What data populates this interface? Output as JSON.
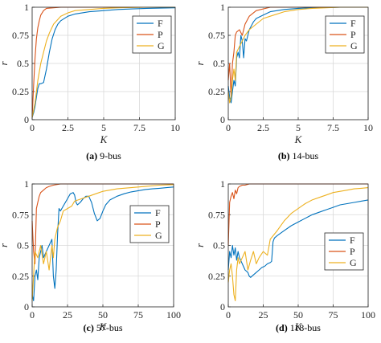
{
  "colors": {
    "F": "#0072bd",
    "P": "#d95319",
    "G": "#edb120",
    "axis": "#262626"
  },
  "chart_data": [
    {
      "type": "line",
      "caption": {
        "label": "(a)",
        "text": "9-bus"
      },
      "xlabel": "K",
      "ylabel": "r",
      "xlim": [
        0,
        10
      ],
      "ylim": [
        0,
        1
      ],
      "xticks": [
        "0",
        "2.5",
        "5",
        "7.5",
        "10"
      ],
      "yticks": [
        "0",
        "0.25",
        "0.5",
        "0.75",
        "1"
      ],
      "grid": true,
      "legend_position": "top-right",
      "series": [
        {
          "name": "F",
          "color": "#0072bd",
          "x": [
            0,
            0.1,
            0.2,
            0.3,
            0.4,
            0.5,
            0.6,
            0.8,
            1.0,
            1.2,
            1.4,
            1.6,
            1.8,
            2.0,
            2.5,
            3,
            4,
            5,
            6,
            7,
            8,
            10
          ],
          "y": [
            0.02,
            0.06,
            0.12,
            0.2,
            0.28,
            0.32,
            0.32,
            0.33,
            0.45,
            0.6,
            0.72,
            0.8,
            0.85,
            0.88,
            0.92,
            0.94,
            0.96,
            0.97,
            0.98,
            0.985,
            0.99,
            0.995
          ]
        },
        {
          "name": "P",
          "color": "#d95319",
          "x": [
            0,
            0.1,
            0.2,
            0.3,
            0.4,
            0.5,
            0.6,
            0.8,
            1.0,
            1.5,
            2,
            3,
            10
          ],
          "y": [
            0.02,
            0.3,
            0.55,
            0.72,
            0.82,
            0.88,
            0.93,
            0.97,
            0.99,
            0.995,
            1,
            1,
            1
          ]
        },
        {
          "name": "G",
          "color": "#edb120",
          "x": [
            0,
            0.2,
            0.4,
            0.6,
            0.8,
            1.0,
            1.2,
            1.5,
            2.0,
            2.5,
            3,
            4,
            5,
            6,
            8,
            10
          ],
          "y": [
            0.02,
            0.15,
            0.35,
            0.5,
            0.6,
            0.7,
            0.77,
            0.85,
            0.92,
            0.95,
            0.97,
            0.98,
            0.99,
            0.995,
            1,
            1
          ]
        }
      ]
    },
    {
      "type": "line",
      "caption": {
        "label": "(b)",
        "text": "14-bus"
      },
      "xlabel": "K",
      "ylabel": "r",
      "xlim": [
        0,
        10
      ],
      "ylim": [
        0,
        1
      ],
      "xticks": [
        "0",
        "2.5",
        "5",
        "7.5",
        "10"
      ],
      "yticks": [
        "0",
        "0.25",
        "0.5",
        "0.75",
        "1"
      ],
      "grid": true,
      "legend_position": "top-right",
      "series": [
        {
          "name": "F",
          "color": "#0072bd",
          "x": [
            0,
            0.1,
            0.2,
            0.3,
            0.4,
            0.5,
            0.6,
            0.7,
            0.8,
            0.9,
            1.0,
            1.1,
            1.2,
            1.3,
            1.5,
            1.8,
            2.0,
            2.5,
            3,
            4,
            5,
            6,
            8,
            10
          ],
          "y": [
            0.3,
            0.2,
            0.15,
            0.25,
            0.35,
            0.3,
            0.55,
            0.6,
            0.55,
            0.75,
            0.7,
            0.55,
            0.72,
            0.7,
            0.8,
            0.87,
            0.9,
            0.93,
            0.96,
            0.98,
            0.99,
            0.995,
            1,
            1
          ]
        },
        {
          "name": "P",
          "color": "#d95319",
          "x": [
            0,
            0.1,
            0.2,
            0.3,
            0.4,
            0.5,
            0.6,
            0.8,
            1.0,
            1.2,
            1.5,
            2,
            3,
            10
          ],
          "y": [
            0.35,
            0.5,
            0.2,
            0.5,
            0.6,
            0.75,
            0.78,
            0.8,
            0.75,
            0.85,
            0.92,
            0.97,
            1,
            1
          ]
        },
        {
          "name": "G",
          "color": "#edb120",
          "x": [
            0,
            0.1,
            0.2,
            0.3,
            0.4,
            0.5,
            0.6,
            0.8,
            1.0,
            1.2,
            1.5,
            2,
            2.5,
            3,
            4,
            5,
            6,
            8,
            10
          ],
          "y": [
            0.25,
            0.15,
            0.2,
            0.35,
            0.45,
            0.35,
            0.6,
            0.65,
            0.7,
            0.75,
            0.8,
            0.85,
            0.9,
            0.92,
            0.96,
            0.98,
            0.99,
            1,
            1
          ]
        }
      ]
    },
    {
      "type": "line",
      "caption": {
        "label": "(c)",
        "text": "57-bus"
      },
      "xlabel": "K",
      "ylabel": "r",
      "xlim": [
        0,
        100
      ],
      "ylim": [
        0,
        1
      ],
      "xticks": [
        "0",
        "25",
        "50",
        "75",
        "100"
      ],
      "yticks": [
        "0",
        "0.25",
        "0.5",
        "0.75",
        "1"
      ],
      "grid": true,
      "legend_position": "middle-right",
      "series": [
        {
          "name": "F",
          "color": "#0072bd",
          "x": [
            0,
            1,
            2,
            3,
            4,
            5,
            6,
            7,
            8,
            10,
            12,
            14,
            15,
            16,
            17,
            18,
            19,
            20,
            22,
            25,
            27,
            29,
            30,
            31,
            32,
            34,
            36,
            38,
            40,
            42,
            44,
            46,
            48,
            50,
            52,
            55,
            60,
            65,
            70,
            75,
            80,
            85,
            90,
            95,
            100
          ],
          "y": [
            0.1,
            0.05,
            0.25,
            0.3,
            0.22,
            0.4,
            0.45,
            0.5,
            0.4,
            0.45,
            0.5,
            0.55,
            0.25,
            0.15,
            0.3,
            0.6,
            0.8,
            0.78,
            0.82,
            0.88,
            0.92,
            0.93,
            0.91,
            0.85,
            0.83,
            0.85,
            0.88,
            0.9,
            0.9,
            0.85,
            0.76,
            0.7,
            0.72,
            0.78,
            0.83,
            0.87,
            0.9,
            0.92,
            0.935,
            0.945,
            0.955,
            0.96,
            0.965,
            0.97,
            0.975
          ]
        },
        {
          "name": "P",
          "color": "#d95319",
          "x": [
            0,
            1,
            2,
            3,
            4,
            5,
            6,
            8,
            10,
            12,
            15,
            20,
            30,
            100
          ],
          "y": [
            0.7,
            0.45,
            0.35,
            0.8,
            0.85,
            0.9,
            0.93,
            0.95,
            0.97,
            0.98,
            0.99,
            1,
            1,
            1
          ]
        },
        {
          "name": "G",
          "color": "#edb120",
          "x": [
            0,
            2,
            4,
            6,
            8,
            10,
            12,
            14,
            15,
            16,
            17,
            18,
            20,
            22,
            25,
            28,
            30,
            35,
            40,
            45,
            50,
            60,
            70,
            80,
            90,
            100
          ],
          "y": [
            0.05,
            0.45,
            0.4,
            0.5,
            0.35,
            0.45,
            0.3,
            0.5,
            0.4,
            0.55,
            0.6,
            0.65,
            0.7,
            0.78,
            0.8,
            0.82,
            0.86,
            0.88,
            0.9,
            0.92,
            0.94,
            0.96,
            0.97,
            0.98,
            0.99,
            0.995
          ]
        }
      ]
    },
    {
      "type": "line",
      "caption": {
        "label": "(d)",
        "text": "118-bus"
      },
      "xlabel": "K",
      "ylabel": "r",
      "xlim": [
        0,
        100
      ],
      "ylim": [
        0,
        1
      ],
      "xticks": [
        "0",
        "25",
        "50",
        "75",
        "100"
      ],
      "yticks": [
        "0",
        "0.25",
        "0.5",
        "0.75",
        "1"
      ],
      "grid": true,
      "legend_position": "middle-right",
      "series": [
        {
          "name": "F",
          "color": "#0072bd",
          "x": [
            0,
            1,
            2,
            3,
            4,
            5,
            6,
            7,
            8,
            10,
            12,
            14,
            15,
            16,
            18,
            20,
            22,
            24,
            26,
            28,
            30,
            31,
            32,
            33,
            35,
            40,
            45,
            50,
            55,
            60,
            65,
            70,
            75,
            80,
            85,
            90,
            95,
            100
          ],
          "y": [
            0.3,
            0.45,
            0.4,
            0.5,
            0.42,
            0.48,
            0.38,
            0.45,
            0.4,
            0.35,
            0.3,
            0.28,
            0.25,
            0.24,
            0.26,
            0.28,
            0.3,
            0.32,
            0.33,
            0.35,
            0.36,
            0.37,
            0.53,
            0.56,
            0.58,
            0.62,
            0.66,
            0.69,
            0.72,
            0.75,
            0.77,
            0.79,
            0.81,
            0.83,
            0.84,
            0.85,
            0.86,
            0.87
          ]
        },
        {
          "name": "P",
          "color": "#d95319",
          "x": [
            0,
            1,
            2,
            3,
            4,
            5,
            6,
            7,
            8,
            10,
            12,
            15,
            20,
            25,
            30,
            100
          ],
          "y": [
            0.5,
            0.85,
            0.9,
            0.93,
            0.88,
            0.95,
            0.92,
            0.97,
            0.98,
            0.99,
            0.99,
            1,
            1,
            1,
            1,
            1
          ]
        },
        {
          "name": "G",
          "color": "#edb120",
          "x": [
            0,
            1,
            2,
            3,
            4,
            5,
            6,
            7,
            8,
            10,
            12,
            14,
            16,
            18,
            20,
            22,
            25,
            28,
            30,
            35,
            40,
            45,
            50,
            55,
            60,
            65,
            70,
            75,
            80,
            85,
            90,
            95,
            100
          ],
          "y": [
            0.2,
            0.3,
            0.35,
            0.25,
            0.1,
            0.05,
            0.3,
            0.4,
            0.35,
            0.4,
            0.45,
            0.3,
            0.38,
            0.45,
            0.35,
            0.4,
            0.45,
            0.42,
            0.55,
            0.62,
            0.7,
            0.76,
            0.8,
            0.84,
            0.87,
            0.89,
            0.91,
            0.93,
            0.94,
            0.95,
            0.96,
            0.965,
            0.97
          ]
        }
      ]
    }
  ]
}
